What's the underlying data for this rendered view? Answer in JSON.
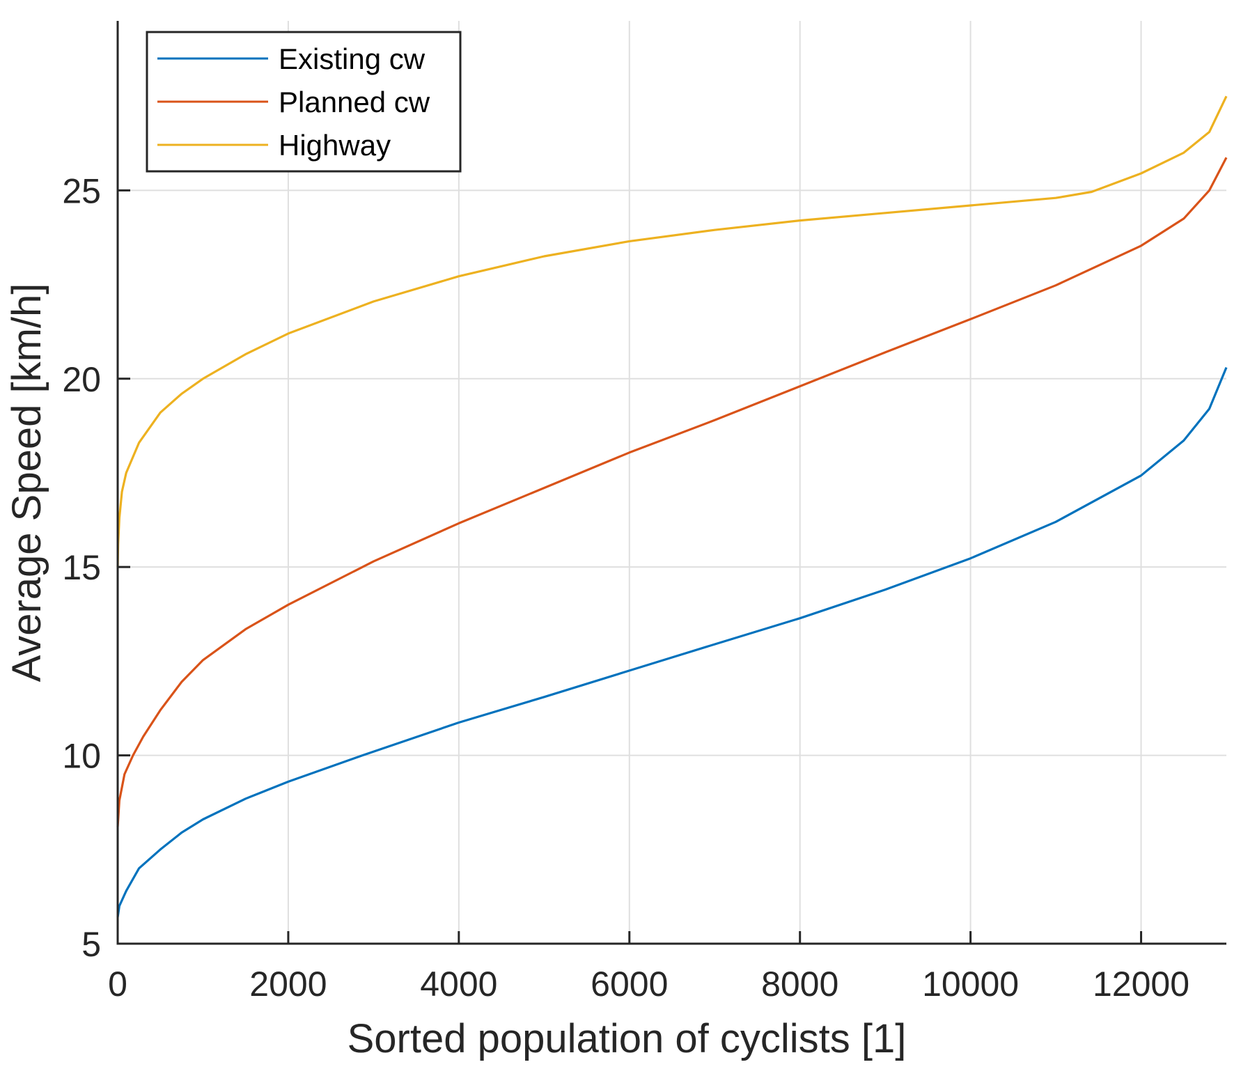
{
  "chart_data": {
    "type": "line",
    "title": "",
    "xlabel": "Sorted population of cyclists [1]",
    "ylabel": "Average Speed [km/h]",
    "xlim": [
      0,
      13000
    ],
    "ylim": [
      5,
      29.5
    ],
    "xticks": [
      0,
      2000,
      4000,
      6000,
      8000,
      10000,
      12000
    ],
    "xtick_labels": [
      "0",
      "2000",
      "4000",
      "6000",
      "8000",
      "10000",
      "12000"
    ],
    "yticks": [
      5,
      10,
      15,
      20,
      25
    ],
    "ytick_labels": [
      "5",
      "10",
      "15",
      "20",
      "25"
    ],
    "grid": true,
    "legend_position": "top-left",
    "series": [
      {
        "name": "Existing cw",
        "color": "#0072BD",
        "x": [
          0,
          20,
          100,
          250,
          500,
          750,
          1000,
          1500,
          2000,
          2870,
          4000,
          5000,
          6000,
          7000,
          8000,
          9000,
          10000,
          11000,
          12000,
          12500,
          12800,
          13000
        ],
        "y": [
          5.7,
          6.0,
          6.4,
          7.0,
          7.5,
          7.95,
          8.3,
          8.85,
          9.3,
          10.0,
          10.87,
          11.55,
          12.25,
          12.95,
          13.64,
          14.4,
          15.23,
          16.2,
          17.43,
          18.36,
          19.2,
          20.3
        ]
      },
      {
        "name": "Planned cw",
        "color": "#D95319",
        "x": [
          0,
          20,
          80,
          180,
          300,
          500,
          750,
          1000,
          1500,
          2000,
          3000,
          4000,
          5000,
          6000,
          7000,
          8000,
          9000,
          10000,
          11000,
          12000,
          12500,
          12800,
          13000
        ],
        "y": [
          8.1,
          8.8,
          9.5,
          10.0,
          10.5,
          11.2,
          11.95,
          12.53,
          13.35,
          14.0,
          15.15,
          16.16,
          17.1,
          18.04,
          18.9,
          19.8,
          20.7,
          21.58,
          22.48,
          23.53,
          24.25,
          25.0,
          25.87
        ]
      },
      {
        "name": "Highway",
        "color": "#EDB120",
        "x": [
          0,
          5,
          20,
          50,
          100,
          250,
          500,
          750,
          1000,
          1500,
          2000,
          3000,
          4000,
          5000,
          6000,
          7000,
          8000,
          9000,
          10000,
          11000,
          11420,
          12000,
          12500,
          12800,
          13000
        ],
        "y": [
          15.0,
          15.6,
          16.3,
          17.0,
          17.5,
          18.3,
          19.1,
          19.6,
          20.0,
          20.65,
          21.2,
          22.05,
          22.72,
          23.25,
          23.65,
          23.95,
          24.2,
          24.4,
          24.6,
          24.8,
          24.96,
          25.45,
          26.0,
          26.55,
          27.5
        ]
      }
    ]
  },
  "legend": {
    "items": [
      {
        "label": "Existing cw",
        "color": "#0072BD"
      },
      {
        "label": "Planned cw",
        "color": "#D95319"
      },
      {
        "label": "Highway",
        "color": "#EDB120"
      }
    ]
  },
  "style": {
    "axis_color": "#262626",
    "grid_color": "#DFDFDF",
    "background": "#FFFFFF"
  }
}
